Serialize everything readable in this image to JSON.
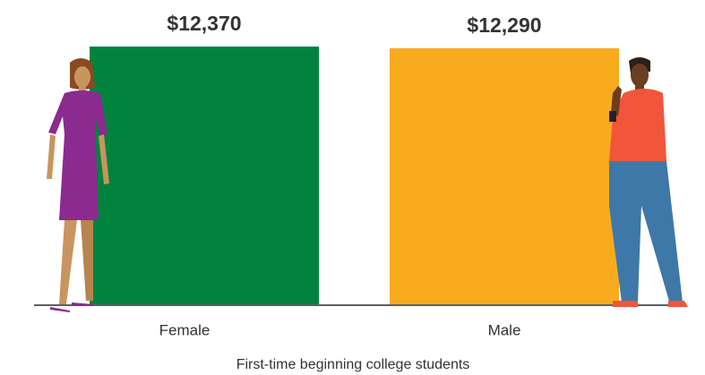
{
  "chart_data": {
    "type": "bar",
    "categories": [
      "Female",
      "Male"
    ],
    "values": [
      12370,
      12290
    ],
    "value_labels": [
      "$12,370",
      "$12,290"
    ],
    "colors": [
      "#00843d",
      "#f9ab1e"
    ],
    "ylim": [
      0,
      12500
    ],
    "x_label": "First-time beginning college students"
  }
}
